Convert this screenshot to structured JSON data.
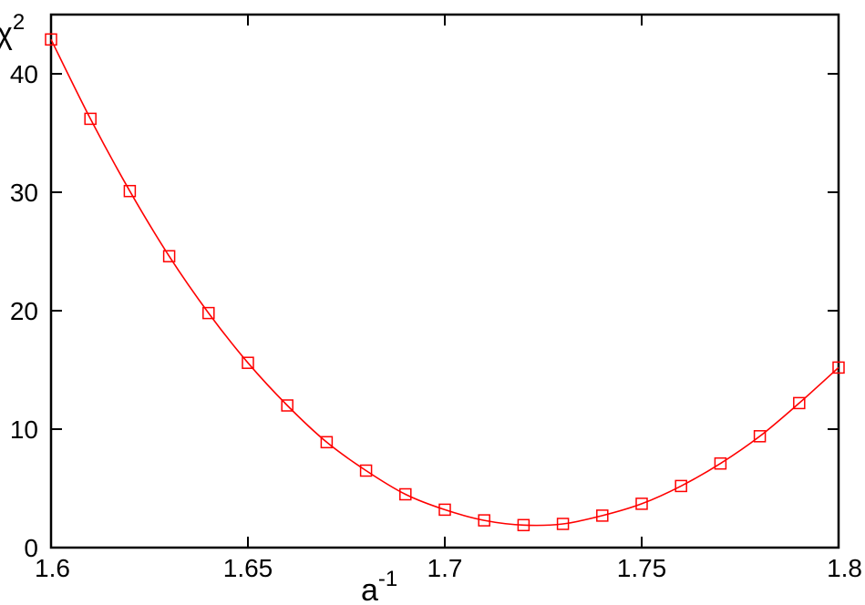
{
  "chart_data": {
    "type": "line",
    "xlabel": "a",
    "xlabel_sup": "-1",
    "ylabel": "χ",
    "ylabel_sup": "2",
    "xlim": [
      1.6,
      1.8
    ],
    "ylim": [
      0,
      45
    ],
    "xticks": [
      1.6,
      1.65,
      1.7,
      1.75,
      1.8
    ],
    "xtick_labels": [
      "1.6",
      "1.65",
      "1.7",
      "1.75",
      "1.8"
    ],
    "yticks": [
      0,
      10,
      20,
      30,
      40
    ],
    "ytick_labels": [
      "0",
      "10",
      "20",
      "30",
      "40"
    ],
    "grid": false,
    "series": [
      {
        "color": "#ff0000",
        "marker": "square",
        "x": [
          1.6,
          1.61,
          1.62,
          1.63,
          1.64,
          1.65,
          1.66,
          1.67,
          1.68,
          1.69,
          1.7,
          1.71,
          1.72,
          1.73,
          1.74,
          1.75,
          1.76,
          1.77,
          1.78,
          1.79,
          1.8
        ],
        "y": [
          42.9,
          36.2,
          30.1,
          24.6,
          19.8,
          15.6,
          12.0,
          8.9,
          6.5,
          4.5,
          3.2,
          2.3,
          1.9,
          2.0,
          2.7,
          3.7,
          5.2,
          7.1,
          9.4,
          12.2,
          15.2
        ]
      }
    ]
  }
}
